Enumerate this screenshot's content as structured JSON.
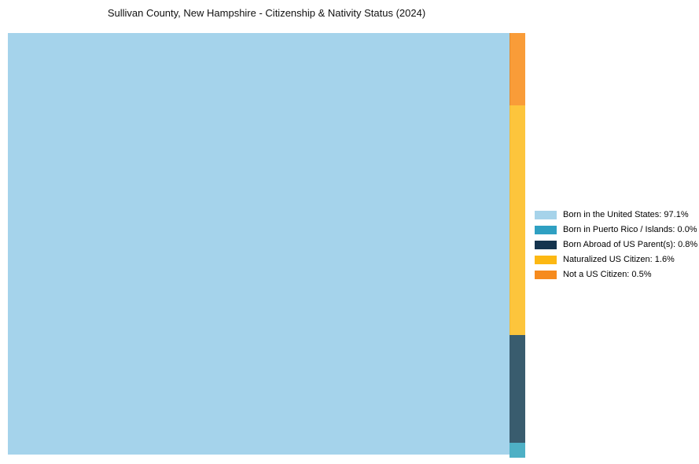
{
  "title": "Sullivan County, New Hampshire - Citizenship & Nativity Status (2024)",
  "chart_data": {
    "type": "treemap",
    "title": "Sullivan County, New Hampshire - Citizenship & Nativity Status (2024)",
    "unit": "%",
    "legend_position": "right",
    "series": [
      {
        "name": "Born in the United States",
        "value": 97.1,
        "cell_color": "#A5D3EB",
        "legend_color": "#A6D3EA"
      },
      {
        "name": "Born in Puerto Rico / Islands",
        "value": 0.0,
        "cell_color": "#4EB0C5",
        "legend_color": "#2FA0C2"
      },
      {
        "name": "Born Abroad of US Parent(s)",
        "value": 0.8,
        "cell_color": "#395C6E",
        "legend_color": "#14344E"
      },
      {
        "name": "Naturalized US Citizen",
        "value": 1.6,
        "cell_color": "#FDC53C",
        "legend_color": "#FCB813"
      },
      {
        "name": "Not a US Citizen",
        "value": 0.5,
        "cell_color": "#F99C38",
        "legend_color": "#F68B1E"
      }
    ]
  },
  "legend": {
    "items": [
      {
        "label": "Born in the United States: 97.1%",
        "color": "#A6D3EA"
      },
      {
        "label": "Born in Puerto Rico / Islands: 0.0%",
        "color": "#2FA0C2"
      },
      {
        "label": "Born Abroad of US Parent(s): 0.8%",
        "color": "#14344E"
      },
      {
        "label": "Naturalized US Citizen: 1.6%",
        "color": "#FCB813"
      },
      {
        "label": "Not a US Citizen: 0.5%",
        "color": "#F68B1E"
      }
    ]
  }
}
